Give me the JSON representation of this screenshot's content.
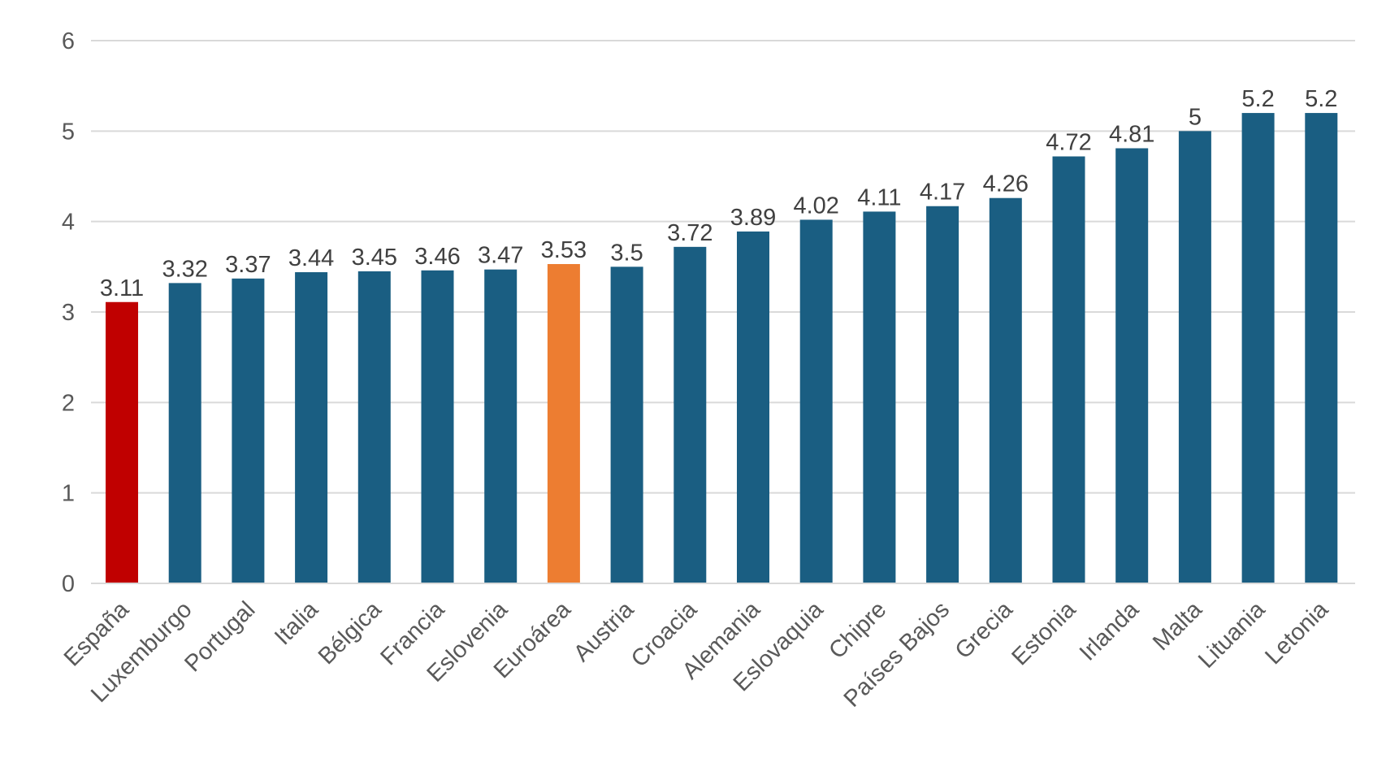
{
  "chart_data": {
    "type": "bar",
    "title": "",
    "xlabel": "",
    "ylabel": "",
    "ylim": [
      0,
      6
    ],
    "yticks": [
      0,
      1,
      2,
      3,
      4,
      5,
      6
    ],
    "grid": true,
    "legend": "none",
    "categories": [
      "España",
      "Luxemburgo",
      "Portugal",
      "Italia",
      "Bélgica",
      "Francia",
      "Eslovenia",
      "Euroárea",
      "Austria",
      "Croacia",
      "Alemania",
      "Eslovaquia",
      "Chipre",
      "Países Bajos",
      "Grecia",
      "Estonia",
      "Irlanda",
      "Malta",
      "Lituania",
      "Letonia"
    ],
    "values": [
      3.11,
      3.32,
      3.37,
      3.44,
      3.45,
      3.46,
      3.47,
      3.53,
      3.5,
      3.72,
      3.89,
      4.02,
      4.11,
      4.17,
      4.26,
      4.72,
      4.81,
      5,
      5.2,
      5.2
    ],
    "value_labels": [
      "3.11",
      "3.32",
      "3.37",
      "3.44",
      "3.45",
      "3.46",
      "3.47",
      "3.53",
      "3.5",
      "3.72",
      "3.89",
      "4.02",
      "4.11",
      "4.17",
      "4.26",
      "4.72",
      "4.81",
      "5",
      "5.2",
      "5.2"
    ],
    "colors": {
      "default": "#1a5e82",
      "highlights": {
        "España": "#c00000",
        "Euroárea": "#ed7d31"
      }
    }
  }
}
